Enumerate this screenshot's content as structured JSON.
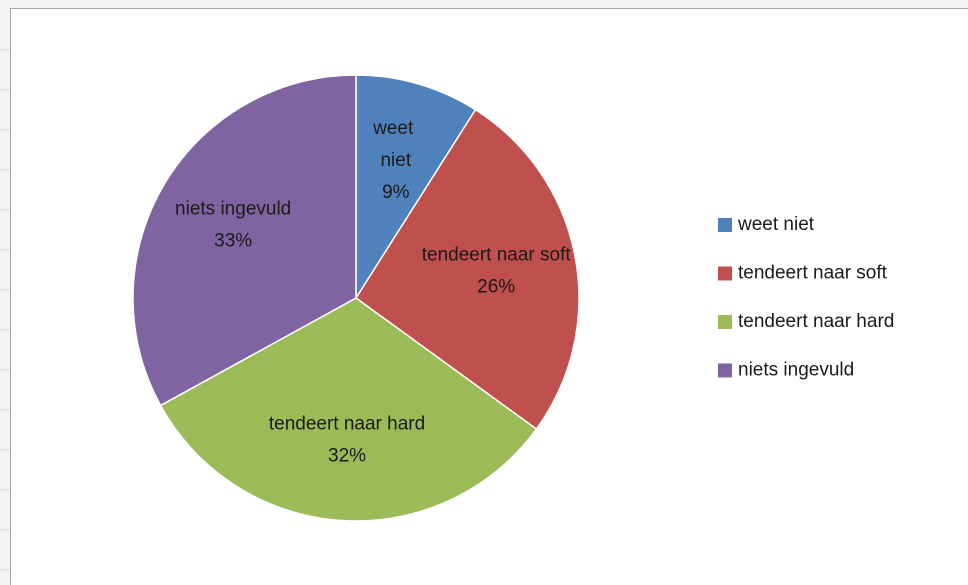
{
  "chart_data": {
    "type": "pie",
    "categories": [
      "weet niet",
      "tendeert naar soft",
      "tendeert naar hard",
      "niets ingevuld"
    ],
    "values": [
      9,
      26,
      32,
      33
    ],
    "value_labels": [
      "9%",
      "26%",
      "32%",
      "33%"
    ],
    "colors": [
      "#4f81bd",
      "#c0504d",
      "#9bbb59",
      "#8064a2"
    ],
    "legend": "right"
  }
}
